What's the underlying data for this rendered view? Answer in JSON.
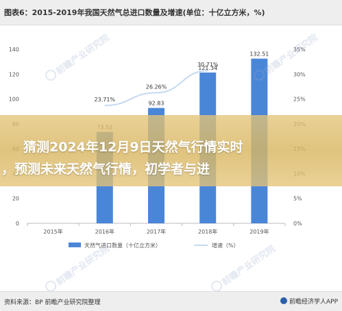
{
  "header": {
    "title": "图表6：2015-2019年我国天然气总进口数量及增速(单位：十亿立方米，%)"
  },
  "overlay": {
    "line1": "猜测2024年12月9日天然气行情实时",
    "line2": "，预测未来天然气行情，初学者与进"
  },
  "watermark": {
    "text": "前瞻产业研究院"
  },
  "footer": {
    "source": "资料来源：BP 前瞻产业研究院整理",
    "brand": "前瞻经济学人APP"
  },
  "colors": {
    "bar": "#4a86d8",
    "line": "#c5d9f1",
    "axis": "#bbbbbb",
    "text": "#555555"
  },
  "chart_data": {
    "type": "bar",
    "categories": [
      "2015年",
      "2016年",
      "2017年",
      "2018年",
      "2019年"
    ],
    "series": [
      {
        "name": "天然气进口数量（十亿立方米）",
        "type": "bar",
        "axis": "left",
        "values": [
          null,
          73.52,
          92.83,
          121.34,
          132.51
        ],
        "labels": [
          "",
          "73.52",
          "92.83",
          "121.34",
          "132.51"
        ]
      },
      {
        "name": "增速（%）",
        "type": "line",
        "axis": "right",
        "values": [
          null,
          23.71,
          26.26,
          30.71,
          null
        ],
        "labels": [
          "",
          "23.71%",
          "26.26%",
          "30.71%",
          ""
        ]
      }
    ],
    "left_axis": {
      "ticks": [
        "0",
        "20",
        "40",
        "60",
        "80",
        "100",
        "120",
        "140"
      ],
      "ylim": [
        0,
        140
      ]
    },
    "right_axis": {
      "ticks": [
        "0%",
        "5%",
        "10%",
        "15%",
        "20%",
        "25%",
        "30%",
        "35%"
      ],
      "ylim": [
        0,
        35
      ]
    },
    "legend": "bottom",
    "grid": false
  }
}
